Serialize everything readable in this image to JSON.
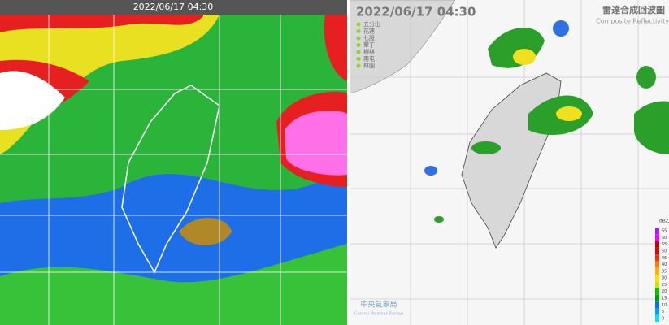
{
  "satellite": {
    "timestamp": "2022/06/17 04:30"
  },
  "radar": {
    "timestamp": "2022/06/17  04:30",
    "title": "雷達合成回波圖",
    "subtitle": "Composite Reflectivity",
    "stations": [
      "五分山",
      "花蓮",
      "七股",
      "墾丁",
      "樹林",
      "南屯",
      "林園"
    ],
    "legend": {
      "unit": "dBZ",
      "ticks": [
        65,
        60,
        55,
        50,
        45,
        40,
        35,
        30,
        25,
        20,
        15,
        10,
        5,
        0
      ]
    },
    "logo": {
      "name": "中央氣象局",
      "english": "Central Weather Bureau"
    }
  }
}
